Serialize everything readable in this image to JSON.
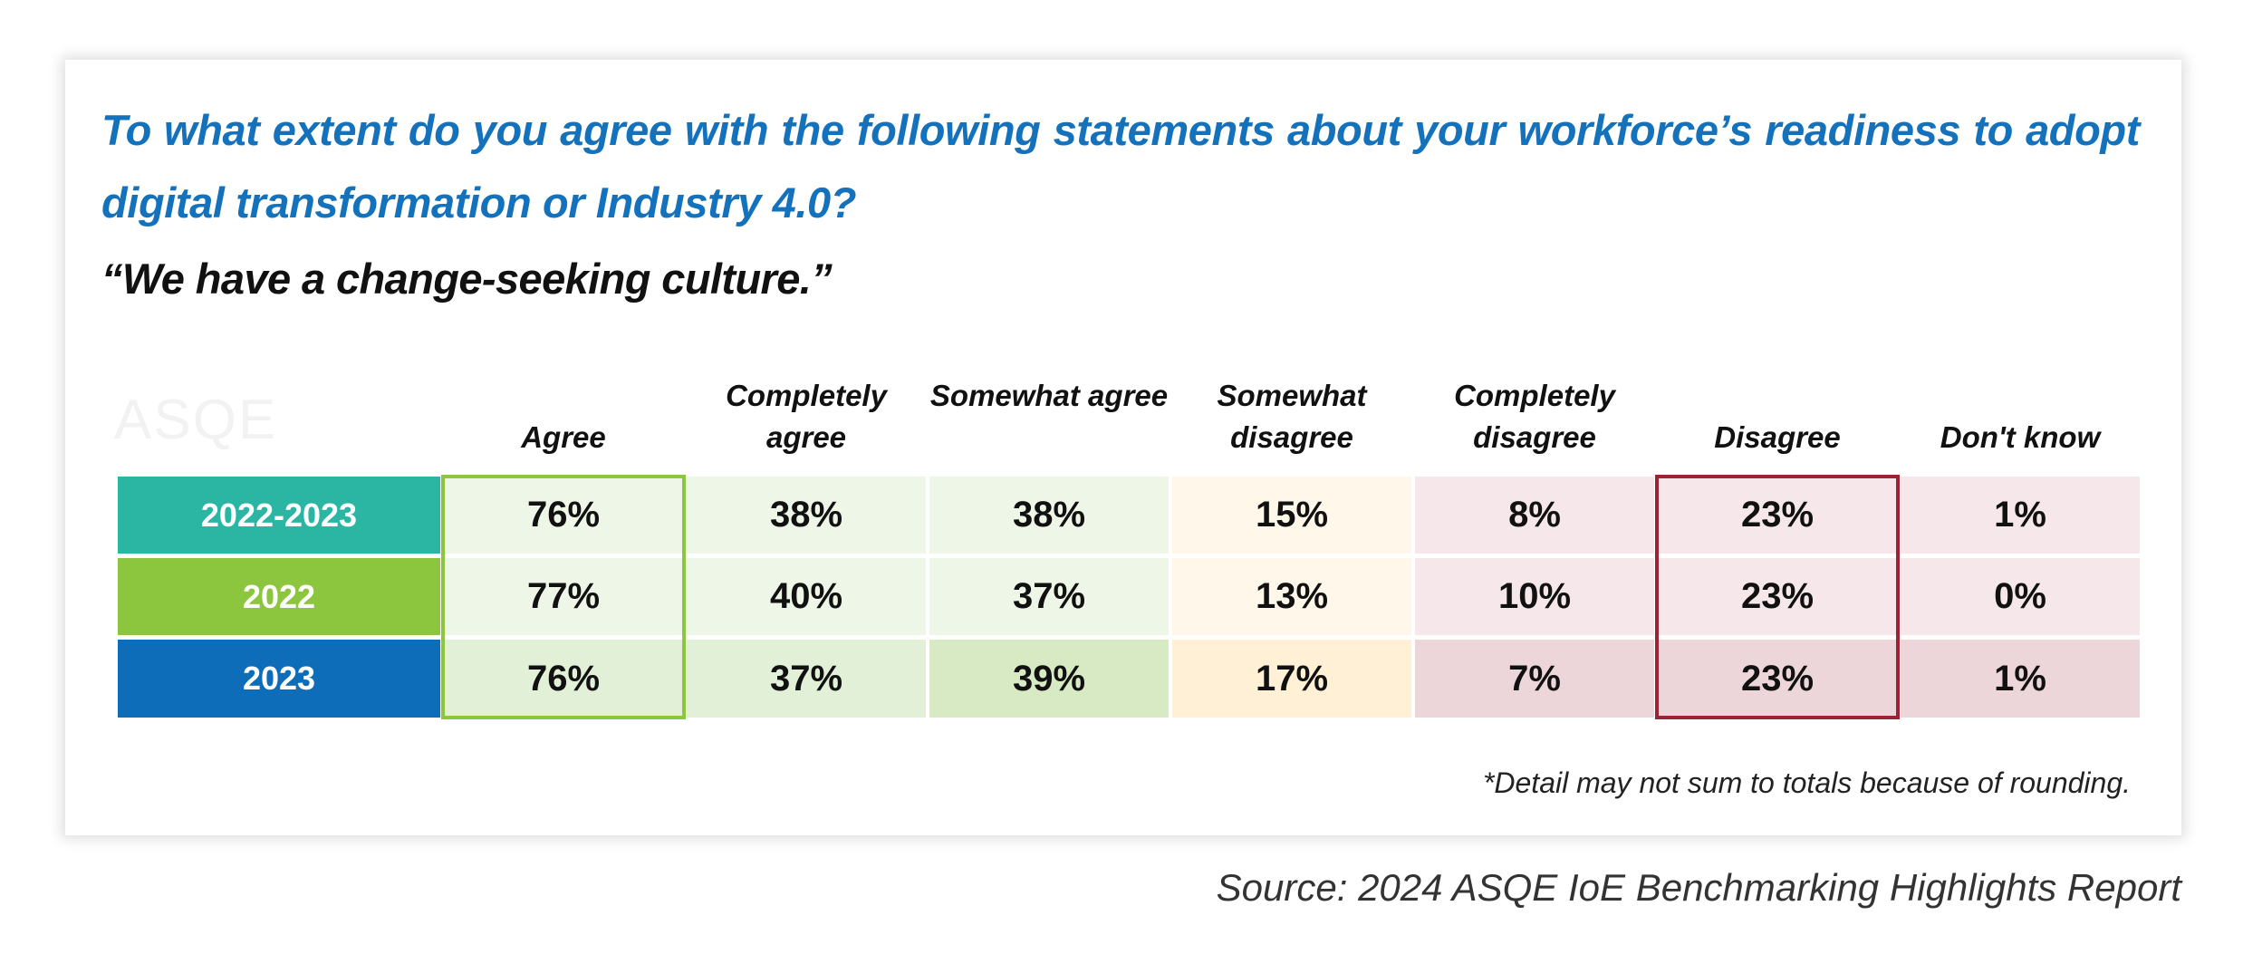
{
  "question": "To what extent do you agree with the following statements about your workforce’s readiness to adopt digital transformation or Industry 4.0?",
  "statement": "“We have a change-seeking culture.”",
  "watermark": "ASQE",
  "footnote": "*Detail may not sum to totals because of rounding.",
  "source": "Source: 2024 ASQE IoE Benchmarking Highlights Report",
  "colors": {
    "question_text": "#1472bd",
    "agree_border": "#8cc63f",
    "disagree_border": "#9b2335"
  },
  "chart_data": {
    "type": "table",
    "columns": [
      "Agree",
      "Completely agree",
      "Somewhat agree",
      "Somewhat disagree",
      "Completely disagree",
      "Disagree",
      "Don't know"
    ],
    "rows": [
      {
        "label": "2022-2023",
        "color": "#2bb5a3",
        "values": [
          "76%",
          "38%",
          "38%",
          "15%",
          "8%",
          "23%",
          "1%"
        ]
      },
      {
        "label": "2022",
        "color": "#8cc63f",
        "values": [
          "77%",
          "40%",
          "37%",
          "13%",
          "10%",
          "23%",
          "0%"
        ]
      },
      {
        "label": "2023",
        "color": "#0e6db8",
        "values": [
          "76%",
          "37%",
          "39%",
          "17%",
          "7%",
          "23%",
          "1%"
        ]
      }
    ]
  }
}
